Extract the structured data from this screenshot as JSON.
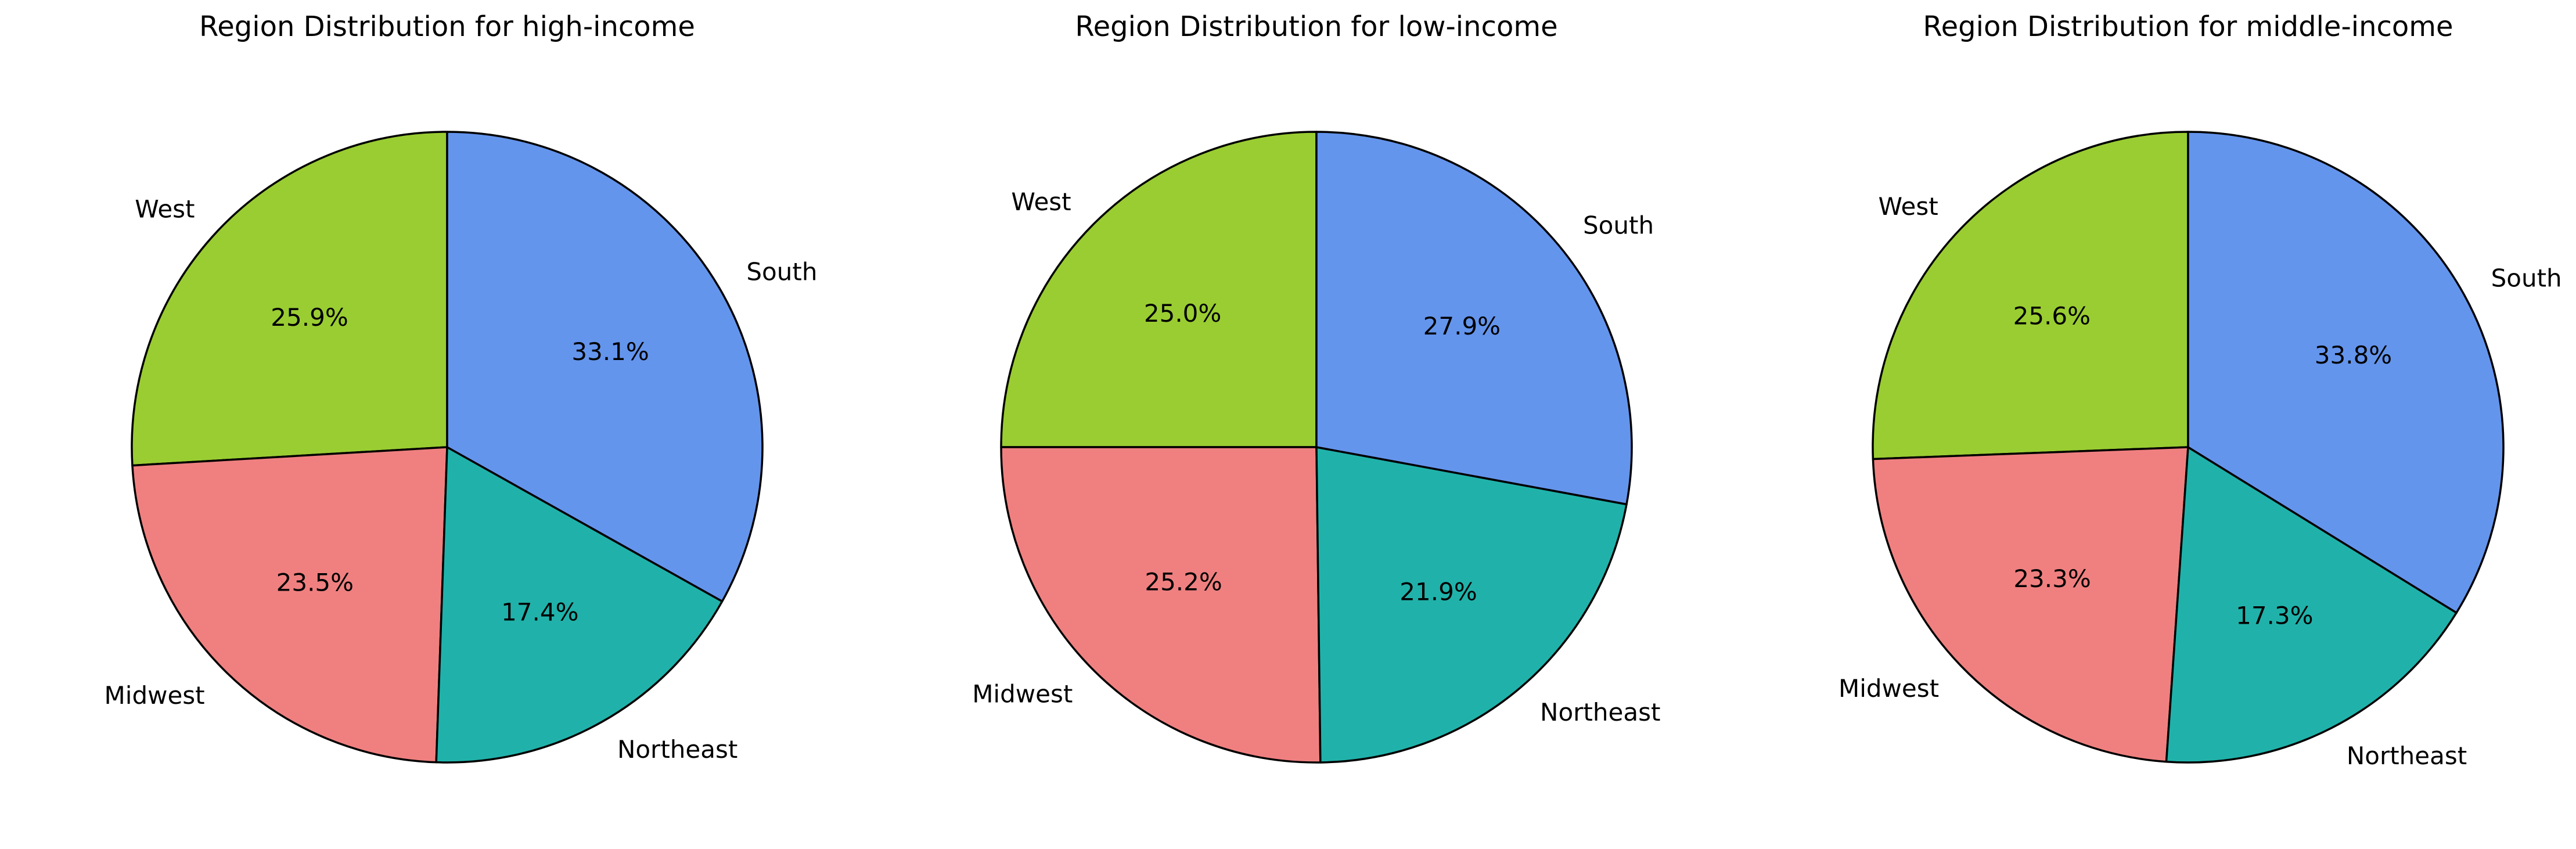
{
  "chart_data": [
    {
      "type": "pie",
      "title": "Region Distribution for high-income",
      "categories": [
        "West",
        "Midwest",
        "Northeast",
        "South"
      ],
      "values": [
        25.9,
        23.5,
        17.4,
        33.1
      ],
      "labels": [
        "25.9%",
        "23.5%",
        "17.4%",
        "33.1%"
      ],
      "start_angle_deg": 90,
      "direction": "counterclockwise"
    },
    {
      "type": "pie",
      "title": "Region Distribution for low-income",
      "categories": [
        "West",
        "Midwest",
        "Northeast",
        "South"
      ],
      "values": [
        25.0,
        25.2,
        21.9,
        27.9
      ],
      "labels": [
        "25.0%",
        "25.2%",
        "21.9%",
        "27.9%"
      ],
      "start_angle_deg": 90,
      "direction": "counterclockwise"
    },
    {
      "type": "pie",
      "title": "Region Distribution for middle-income",
      "categories": [
        "West",
        "Midwest",
        "Northeast",
        "South"
      ],
      "values": [
        25.6,
        23.3,
        17.3,
        33.8
      ],
      "labels": [
        "25.6%",
        "23.3%",
        "17.3%",
        "33.8%"
      ],
      "start_angle_deg": 90,
      "direction": "counterclockwise"
    }
  ],
  "colors": {
    "West": "#9acd32",
    "Midwest": "#f08080",
    "Northeast": "#20b2aa",
    "South": "#6495ed",
    "edge": "#000000"
  }
}
